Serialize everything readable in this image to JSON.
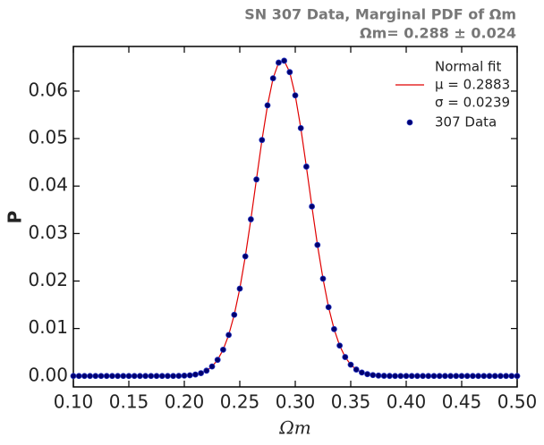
{
  "chart_data": {
    "type": "line_scatter",
    "title": "SN 307 Data, Marginal PDF of Ωm",
    "subtitle": "Ωm= 0.288 ± 0.024",
    "x_label": "Ωm",
    "y_label": "P",
    "legend_notes": [
      "μ = 0.2883",
      "σ = 0.0239"
    ],
    "legend_position": "upper right",
    "x": [
      0.1,
      0.105,
      0.11,
      0.115,
      0.12,
      0.125,
      0.13,
      0.135,
      0.14,
      0.145,
      0.15,
      0.155,
      0.16,
      0.165,
      0.17,
      0.175,
      0.18,
      0.185,
      0.19,
      0.195,
      0.2,
      0.205,
      0.21,
      0.215,
      0.22,
      0.225,
      0.23,
      0.235,
      0.24,
      0.245,
      0.25,
      0.255,
      0.26,
      0.265,
      0.27,
      0.275,
      0.28,
      0.285,
      0.29,
      0.295,
      0.3,
      0.305,
      0.31,
      0.315,
      0.32,
      0.325,
      0.33,
      0.335,
      0.34,
      0.345,
      0.35,
      0.355,
      0.36,
      0.365,
      0.37,
      0.375,
      0.38,
      0.385,
      0.39,
      0.395,
      0.4,
      0.405,
      0.41,
      0.415,
      0.42,
      0.425,
      0.43,
      0.435,
      0.44,
      0.445,
      0.45,
      0.455,
      0.46,
      0.465,
      0.47,
      0.475,
      0.48,
      0.485,
      0.49,
      0.495,
      0.5
    ],
    "series": [
      {
        "name": "Normal fit",
        "color": "#e00000",
        "style": "line",
        "values": [
          0,
          0,
          0,
          0,
          0,
          0,
          0,
          0,
          0,
          0,
          0,
          0,
          0,
          0,
          0,
          0,
          0,
          0,
          1e-05,
          3e-05,
          7e-05,
          0.00015,
          0.00031,
          0.0006,
          0.00112,
          0.002,
          0.0034,
          0.00554,
          0.00864,
          0.0129,
          0.0184,
          0.0252,
          0.033,
          0.0414,
          0.0497,
          0.057,
          0.0627,
          0.066,
          0.0664,
          0.064,
          0.0591,
          0.0522,
          0.0441,
          0.0357,
          0.0276,
          0.0205,
          0.0145,
          0.00987,
          0.00641,
          0.00399,
          0.00238,
          0.00136,
          0.00074,
          0.00039,
          0.00019,
          9e-05,
          4e-05,
          2e-05,
          1e-05,
          0,
          0,
          0,
          0,
          0,
          0,
          0,
          0,
          0,
          0,
          0,
          0,
          0,
          0,
          0,
          0,
          0,
          0,
          0,
          0,
          0,
          0
        ]
      },
      {
        "name": "307 Data",
        "color": "#00006e",
        "style": "points",
        "values": [
          0,
          0,
          0,
          0,
          0,
          0,
          0,
          0,
          0,
          0,
          0,
          0,
          0,
          0,
          0,
          0,
          0,
          0,
          1e-05,
          3e-05,
          7e-05,
          0.00015,
          0.00031,
          0.0006,
          0.00112,
          0.002,
          0.0034,
          0.00554,
          0.00864,
          0.0129,
          0.0184,
          0.0252,
          0.033,
          0.0414,
          0.0497,
          0.057,
          0.0627,
          0.066,
          0.0664,
          0.064,
          0.0591,
          0.0522,
          0.0441,
          0.0357,
          0.0276,
          0.0205,
          0.0145,
          0.00987,
          0.00641,
          0.00399,
          0.00238,
          0.00136,
          0.00074,
          0.00039,
          0.00019,
          9e-05,
          4e-05,
          2e-05,
          1e-05,
          0,
          0,
          0,
          0,
          0,
          0,
          0,
          0,
          0,
          0,
          0,
          0,
          0,
          0,
          0,
          0,
          0,
          0,
          0,
          0,
          0,
          0
        ]
      }
    ],
    "xlim": [
      0.1,
      0.5
    ],
    "xticks": [
      {
        "value": 0.1,
        "label": "0.10"
      },
      {
        "value": 0.15,
        "label": "0.15"
      },
      {
        "value": 0.2,
        "label": "0.20"
      },
      {
        "value": 0.25,
        "label": "0.25"
      },
      {
        "value": 0.3,
        "label": "0.30"
      },
      {
        "value": 0.35,
        "label": "0.35"
      },
      {
        "value": 0.4,
        "label": "0.40"
      },
      {
        "value": 0.45,
        "label": "0.45"
      },
      {
        "value": 0.5,
        "label": "0.50"
      }
    ],
    "ylim": [
      -0.0023,
      0.0694
    ],
    "yticks": [
      {
        "value": 0,
        "label": "0.00"
      },
      {
        "value": 0.01,
        "label": "0.01"
      },
      {
        "value": 0.02,
        "label": "0.02"
      },
      {
        "value": 0.03,
        "label": "0.03"
      },
      {
        "value": 0.04,
        "label": "0.04"
      },
      {
        "value": 0.05,
        "label": "0.05"
      },
      {
        "value": 0.06,
        "label": "0.06"
      }
    ],
    "grid": false
  }
}
